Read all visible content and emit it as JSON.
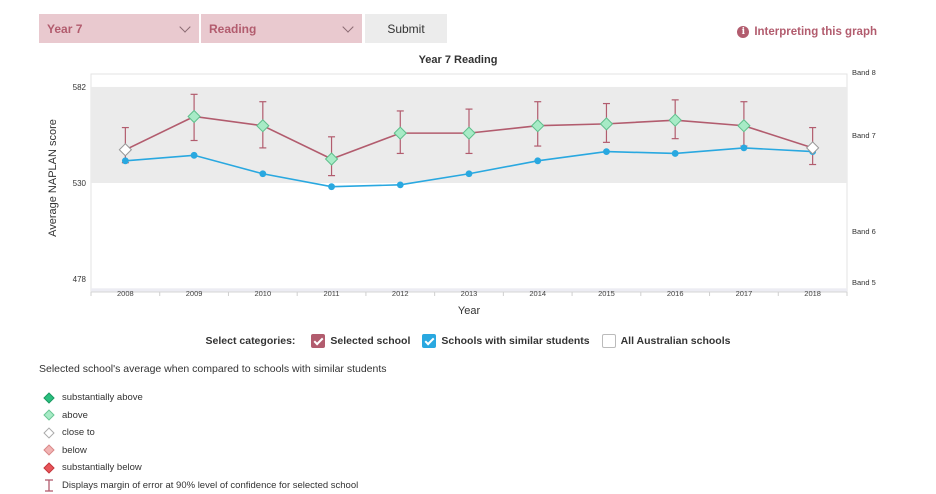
{
  "controls": {
    "year_value": "Year 7",
    "domain_value": "Reading",
    "submit_label": "Submit"
  },
  "help_link": "Interpreting this graph",
  "categories_ui": {
    "label": "Select categories:",
    "items": [
      {
        "label": "Selected school",
        "checked": true,
        "color": "#b25c6e"
      },
      {
        "label": "Schools with similar students",
        "checked": true,
        "color": "#29a8e0"
      },
      {
        "label": "All Australian schools",
        "checked": false,
        "color": "#ffffff"
      }
    ]
  },
  "legend": {
    "title": "Selected school's average when compared to schools with similar students",
    "items": [
      {
        "label": "substantially above",
        "color": "#2bbf7f",
        "icon": "diamond-icon"
      },
      {
        "label": "above",
        "color": "#a7ebc6",
        "icon": "diamond-icon"
      },
      {
        "label": "close to",
        "color": "#ffffff",
        "icon": "diamond-icon"
      },
      {
        "label": "below",
        "color": "#f2b4b4",
        "icon": "diamond-icon"
      },
      {
        "label": "substantially below",
        "color": "#e8555a",
        "icon": "diamond-icon"
      },
      {
        "label": "Displays margin of error at 90% level of confidence for selected school",
        "color": "#b25c6e",
        "icon": "error-bar-icon"
      }
    ]
  },
  "chart_data": {
    "type": "line",
    "title": "Year 7 Reading",
    "xlabel": "Year",
    "ylabel": "Average NAPLAN score",
    "x": [
      "2008",
      "2009",
      "2010",
      "2011",
      "2012",
      "2013",
      "2014",
      "2015",
      "2016",
      "2017",
      "2018"
    ],
    "y_ticks": [
      478,
      530,
      582
    ],
    "ylim": [
      471,
      589
    ],
    "band_shading": [
      530,
      582
    ],
    "bands": [
      {
        "label": "Band 8",
        "value": 590
      },
      {
        "label": "Band 7",
        "value": 556
      },
      {
        "label": "Band 6",
        "value": 504
      },
      {
        "label": "Band 5",
        "value": 476.5
      }
    ],
    "series": [
      {
        "name": "Selected school",
        "color": "#b25c6e",
        "values": [
          548,
          566,
          561,
          543,
          557,
          557,
          561,
          562,
          564,
          561,
          549
        ],
        "error_low": [
          541,
          553,
          549,
          534,
          546,
          546,
          550,
          552,
          554,
          550,
          540
        ],
        "error_high": [
          560,
          578,
          574,
          555,
          569,
          570,
          574,
          573,
          575,
          574,
          560
        ],
        "comparison": [
          "close to",
          "above",
          "above",
          "above",
          "above",
          "above",
          "above",
          "above",
          "above",
          "above",
          "close to"
        ]
      },
      {
        "name": "Schools with similar students",
        "color": "#29a8e0",
        "values": [
          542,
          545,
          535,
          528,
          529,
          535,
          542,
          547,
          546,
          549,
          547
        ]
      }
    ],
    "comparison_colors": {
      "substantially above": "#2bbf7f",
      "above": "#a7ebc6",
      "close to": "#ffffff",
      "below": "#f2b4b4",
      "substantially below": "#e8555a"
    }
  }
}
